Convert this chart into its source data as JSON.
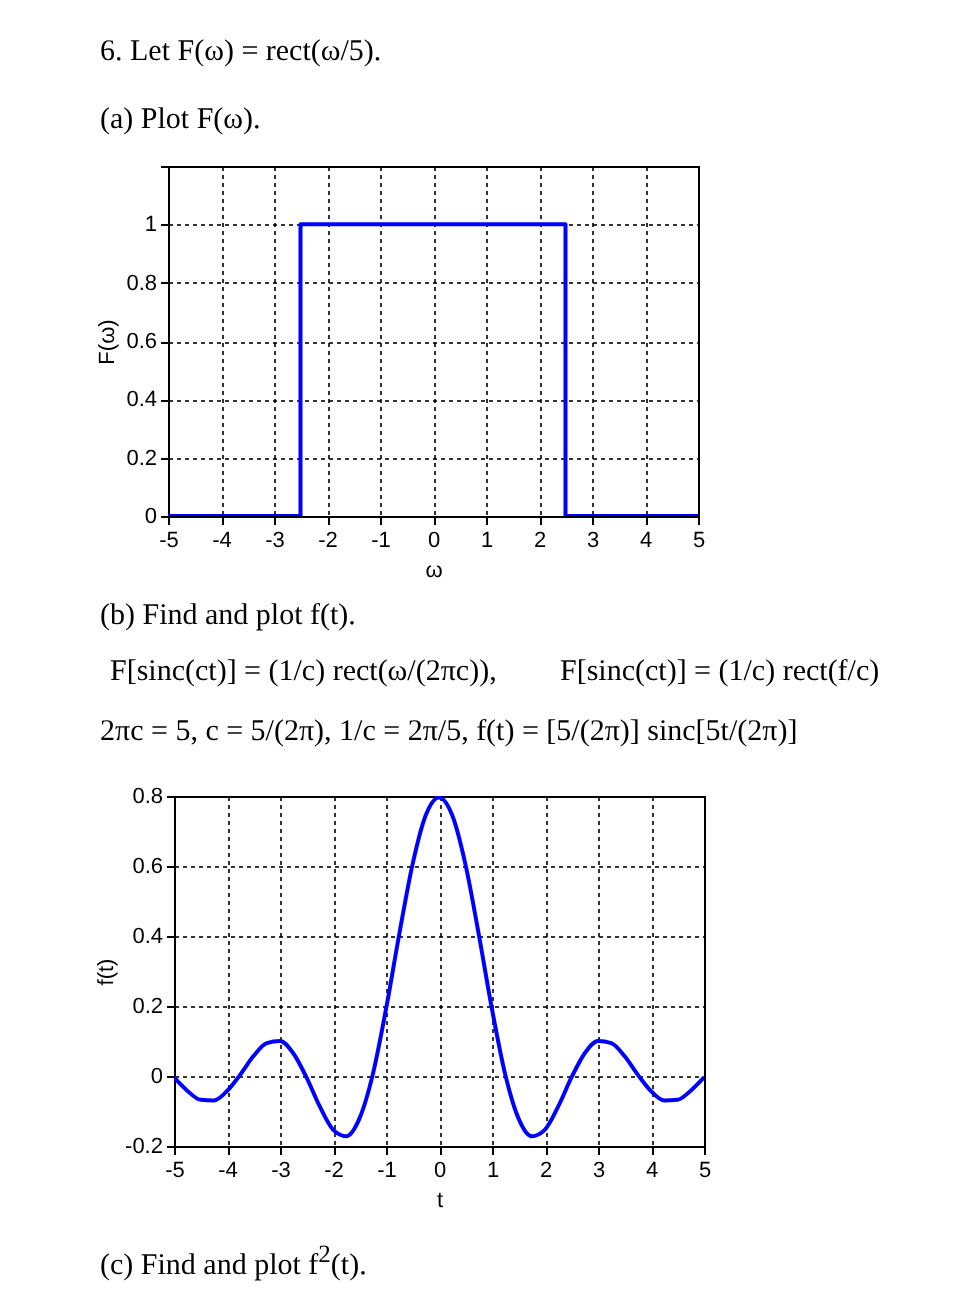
{
  "chart_data": [
    {
      "type": "line",
      "title": "6. Let F(ω) = rect(ω/5).",
      "subtitle": "(a) Plot F(ω).",
      "xlabel": "ω",
      "ylabel": "F(ω)",
      "series": [
        {
          "color": "#0000ff",
          "x": [
            -5,
            -2.5,
            -2.5,
            2.5,
            2.5,
            5
          ],
          "values": [
            0,
            0,
            1,
            1,
            0,
            0
          ]
        }
      ],
      "xlim": [
        -5,
        5
      ],
      "xticks": [
        -5,
        -4,
        -3,
        -2,
        -1,
        0,
        1,
        2,
        3,
        4,
        5
      ],
      "ylim": [
        0,
        1.2
      ],
      "yticks": [
        0,
        0.2,
        0.4,
        0.6,
        0.8,
        1,
        {
          "value": 1.2,
          "label": null
        }
      ],
      "grid": true,
      "line_style": "solid"
    },
    {
      "type": "line",
      "title": "(b) Find and plot f(t).",
      "xlabel": "t",
      "ylabel": "f(t)",
      "annotations": [
        "F[sinc(ct)] = (1/c) rect(ω/(2πc)),",
        "F[sinc(ct)] = (1/c) rect(f/c)",
        "2πc = 5, c = 5/(2π), 1/c = 2π/5, f(t) = [5/(2π)] sinc[5t/(2π)]",
        "(c) Find and plot f$^{2}$(t)."
      ],
      "series": [
        {
          "color": "#0000ff",
          "x": [
            -5,
            -4.75,
            -4.5,
            -4.25,
            -4,
            -3.75,
            -3.5,
            -3.25,
            -3,
            -2.75,
            -2.5,
            -2.25,
            -2,
            -1.75,
            -1.5,
            -1.25,
            -1,
            -0.75,
            -0.5,
            -0.25,
            0,
            0.25,
            0.5,
            0.75,
            1,
            1.25,
            1.5,
            1.75,
            2,
            2.25,
            2.5,
            2.75,
            3,
            3.25,
            3.5,
            3.75,
            4,
            4.25,
            4.5,
            4.75,
            5
          ],
          "values": [
            -0.004,
            -0.042,
            -0.068,
            -0.07,
            -0.043,
            0.004,
            0.057,
            0.094,
            0.1,
            0.065,
            -0.004,
            -0.087,
            -0.153,
            -0.172,
            -0.121,
            0.004,
            0.191,
            0.405,
            0.604,
            0.745,
            0.796,
            0.745,
            0.604,
            0.405,
            0.191,
            0.004,
            -0.121,
            -0.172,
            -0.153,
            -0.087,
            -0.004,
            0.065,
            0.1,
            0.094,
            0.057,
            0.004,
            -0.043,
            -0.07,
            -0.068,
            -0.042,
            -0.004
          ]
        }
      ],
      "xlim": [
        -5,
        5
      ],
      "xticks": [
        -5,
        -4,
        -3,
        -2,
        -1,
        0,
        1,
        2,
        3,
        4,
        5
      ],
      "ylim": [
        -0.2,
        0.8
      ],
      "yticks": [
        -0.2,
        0,
        0.2,
        0.4,
        0.6,
        0.8
      ],
      "grid": true,
      "line_style": "solid"
    }
  ]
}
